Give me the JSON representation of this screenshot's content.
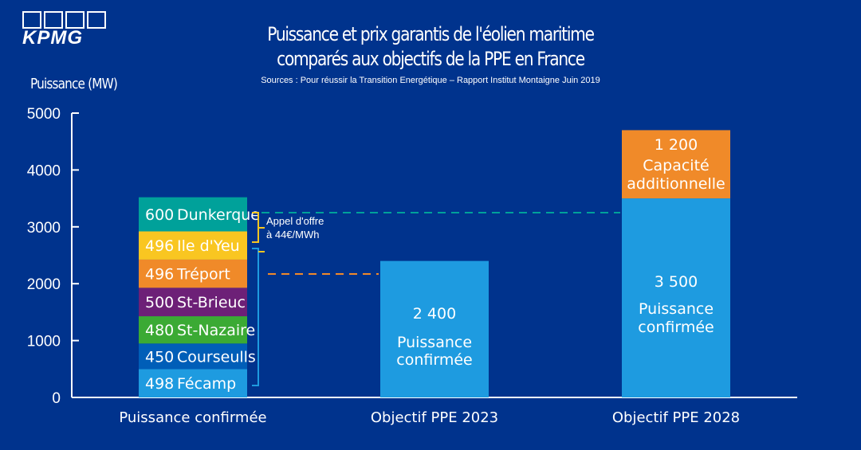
{
  "brand": {
    "logo_text": "KPMG"
  },
  "header": {
    "title_line1": "Puissance et prix garantis de l'éolien maritime",
    "title_line2": "comparés aux objectifs de la PPE en France",
    "sources": "Sources : Pour réussir la Transition Energétique – Rapport Institut Montaigne Juin 2019"
  },
  "chart_data": {
    "type": "bar",
    "ylabel": "Puissance (MW)",
    "ylim": [
      0,
      5000
    ],
    "yticks": [
      0,
      1000,
      2000,
      3000,
      4000,
      5000
    ],
    "categories": [
      "Puissance confirmée",
      "Objectif PPE 2023",
      "Objectif PPE 2028"
    ],
    "stacked_parks": [
      {
        "value": 498,
        "value_label": "498",
        "name": "Fécamp",
        "color": "#1E9BE0"
      },
      {
        "value": 450,
        "value_label": "450",
        "name": "Courseulls",
        "color": "#005EB8"
      },
      {
        "value": 480,
        "value_label": "480",
        "name": "St-Nazaire",
        "color": "#3BAA34"
      },
      {
        "value": 500,
        "value_label": "500",
        "name": "St-Brieuc",
        "color": "#6D2077"
      },
      {
        "value": 496,
        "value_label": "496",
        "name": "Tréport",
        "color": "#F08A29"
      },
      {
        "value": 496,
        "value_label": "496",
        "name": "Ile d'Yeu",
        "color": "#F9C621"
      },
      {
        "value": 600,
        "value_label": "600",
        "name": "Dunkerque",
        "color": "#00A19A"
      }
    ],
    "ppe2023": {
      "value": 2400,
      "value_label": "2 400",
      "line1": "Puissance",
      "line2": "confirmée",
      "color": "#1E9BE0"
    },
    "ppe2028_confirmed": {
      "value": 3500,
      "value_label": "3 500",
      "line1": "Puissance",
      "line2": "confirmée",
      "color": "#1E9BE0"
    },
    "ppe2028_additional": {
      "value": 1200,
      "value_label": "1 200",
      "line1": "Capacité",
      "line2": "additionnelle",
      "color": "#F08A29"
    },
    "annotation": {
      "line1": "Appel d'offre",
      "line2": "à 44€/MWh"
    },
    "reference_lines": [
      {
        "value": 3250,
        "color": "#00A19A"
      },
      {
        "value": 2170,
        "color": "#F08A29"
      }
    ],
    "colors": {
      "axis": "#ffffff",
      "background": "#00338D",
      "bracket_yellow": "#F9C621",
      "bracket_blue": "#1E9BE0"
    }
  }
}
